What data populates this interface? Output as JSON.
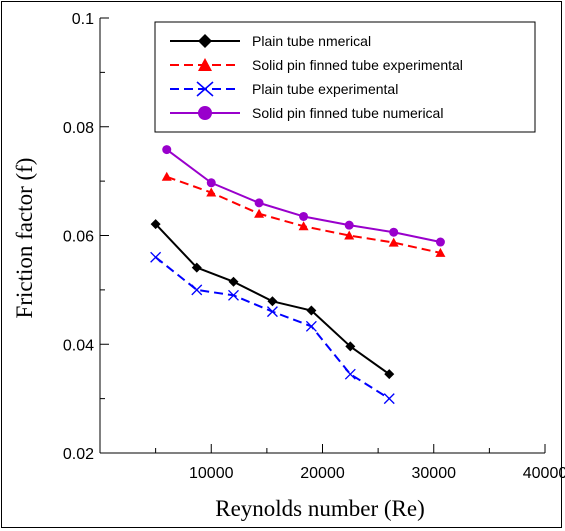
{
  "chart_data": {
    "type": "line",
    "xlabel": "Reynolds number (Re)",
    "ylabel": "Friction factor (f)",
    "xlim": [
      0,
      40000
    ],
    "ylim": [
      0.02,
      0.1
    ],
    "x_ticks": [
      10000,
      20000,
      30000,
      40000
    ],
    "x_tick_labels": [
      "10000",
      "20000",
      "30000",
      "40000"
    ],
    "y_ticks": [
      0.02,
      0.04,
      0.06,
      0.08,
      0.1
    ],
    "y_tick_labels": [
      "0.02",
      "0.04",
      "0.06",
      "0.08",
      "0.1"
    ],
    "grid": false,
    "legend_position": "top-right",
    "series": [
      {
        "name": "Plain tube nmerical",
        "color": "#000000",
        "dash": "solid",
        "marker": "diamond",
        "x": [
          5000,
          8700,
          12000,
          15500,
          19000,
          22500,
          26000
        ],
        "y": [
          0.0621,
          0.0541,
          0.0515,
          0.0479,
          0.0462,
          0.0396,
          0.0345
        ]
      },
      {
        "name": "Solid pin finned tube experimental",
        "color": "#ff0000",
        "dash": "dashed",
        "marker": "triangle",
        "x": [
          6000,
          10000,
          14300,
          18300,
          22400,
          26400,
          30600
        ],
        "y": [
          0.0708,
          0.0679,
          0.064,
          0.0617,
          0.06,
          0.0587,
          0.0568
        ]
      },
      {
        "name": "Plain tube experimental",
        "color": "#0000ff",
        "dash": "dashed",
        "marker": "x",
        "x": [
          5000,
          8700,
          12000,
          15500,
          19000,
          22500,
          26000
        ],
        "y": [
          0.056,
          0.05,
          0.049,
          0.046,
          0.0433,
          0.0345,
          0.03
        ]
      },
      {
        "name": "Solid pin finned tube numerical",
        "color": "#9900cc",
        "dash": "solid",
        "marker": "circle",
        "x": [
          6000,
          10000,
          14300,
          18300,
          22400,
          26400,
          30600
        ],
        "y": [
          0.0758,
          0.0697,
          0.066,
          0.0635,
          0.0619,
          0.0606,
          0.0588
        ]
      }
    ]
  }
}
